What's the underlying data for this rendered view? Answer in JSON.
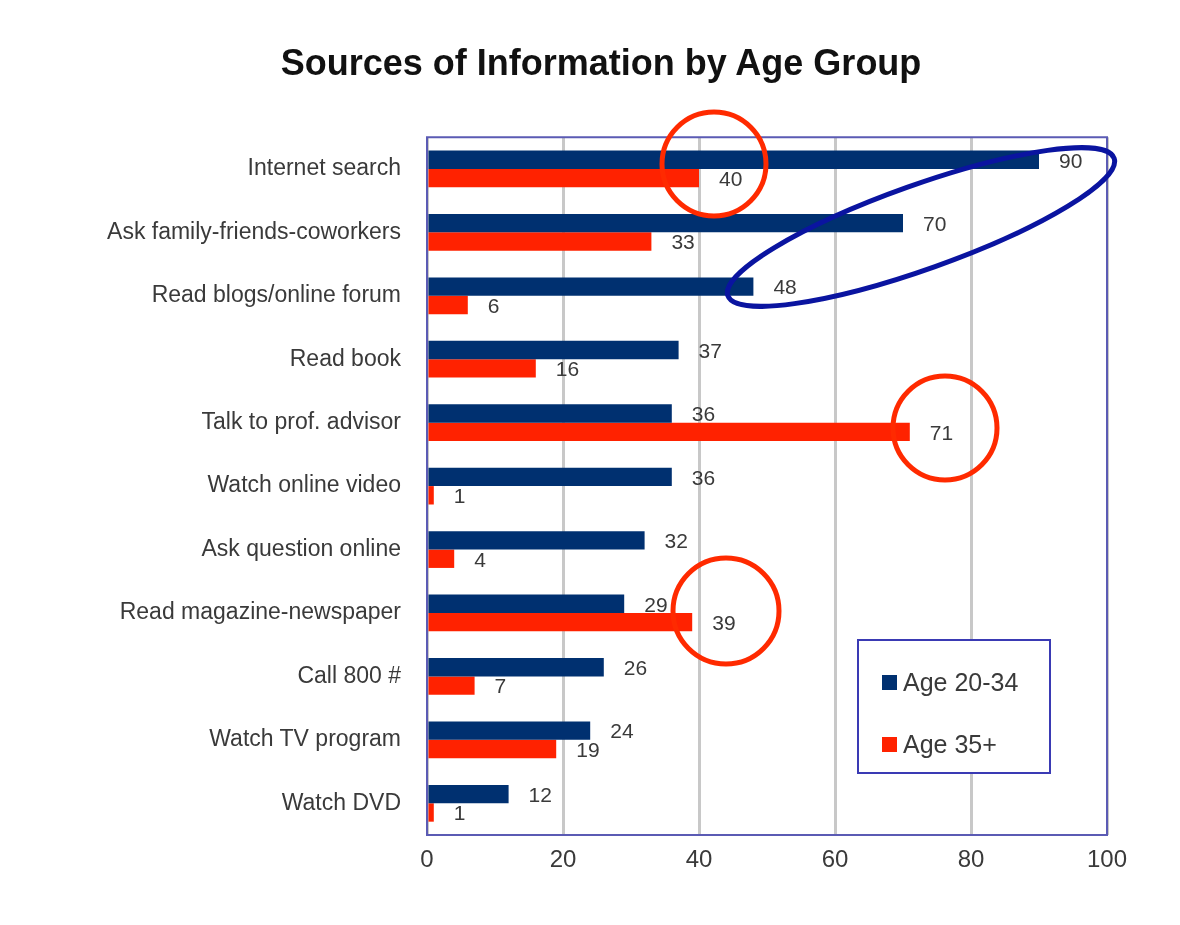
{
  "chart_data": {
    "type": "bar",
    "orientation": "horizontal",
    "title": "Sources of Information by Age Group",
    "categories": [
      "Internet search",
      "Ask family-friends-coworkers",
      "Read blogs/online forum",
      "Read book",
      "Talk to prof. advisor",
      "Watch online video",
      "Ask question online",
      "Read magazine-newspaper",
      "Call 800 #",
      "Watch TV program",
      "Watch DVD"
    ],
    "series": [
      {
        "name": "Age 20-34",
        "color": "#003070",
        "values": [
          90,
          70,
          48,
          37,
          36,
          36,
          32,
          29,
          26,
          24,
          12
        ]
      },
      {
        "name": "Age 35+",
        "color": "#ff2200",
        "values": [
          40,
          33,
          6,
          16,
          71,
          1,
          4,
          39,
          7,
          19,
          1
        ]
      }
    ],
    "xlim": [
      0,
      100
    ],
    "xticks": [
      0,
      20,
      40,
      60,
      80,
      100
    ],
    "grid": "x",
    "legend": "bottom right",
    "data_labels": true
  }
}
